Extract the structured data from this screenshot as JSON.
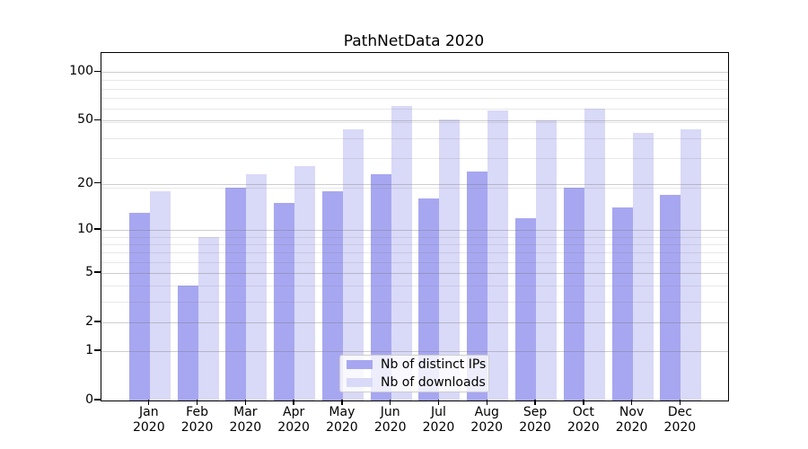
{
  "chart_data": {
    "type": "bar",
    "title": "PathNetData 2020",
    "categories": [
      "Jan",
      "Feb",
      "Mar",
      "Apr",
      "May",
      "Jun",
      "Jul",
      "Aug",
      "Sep",
      "Oct",
      "Nov",
      "Dec"
    ],
    "category_year": "2020",
    "series": [
      {
        "name": "Nb of distinct IPs",
        "color": "#a7a7f1",
        "values": [
          13,
          4,
          19,
          15,
          18,
          23,
          16,
          24,
          12,
          19,
          14,
          17
        ]
      },
      {
        "name": "Nb of downloads",
        "color": "#d9d9f8",
        "values": [
          18,
          9,
          23,
          26,
          44,
          62,
          51,
          58,
          50,
          59,
          42,
          44
        ]
      }
    ],
    "yscale": "log10(value+1)",
    "ylim": [
      0,
      131
    ],
    "yticks": [
      0,
      1,
      2,
      5,
      10,
      20,
      50,
      100
    ],
    "minor_gridlines": [
      3,
      4,
      6,
      7,
      8,
      9,
      19,
      29,
      39,
      49,
      59,
      69,
      79,
      89
    ],
    "grid": true,
    "grid_above_bars": true,
    "legend_position": "lower center",
    "colors": {
      "axis": "#000000",
      "background": "#ffffff"
    }
  }
}
